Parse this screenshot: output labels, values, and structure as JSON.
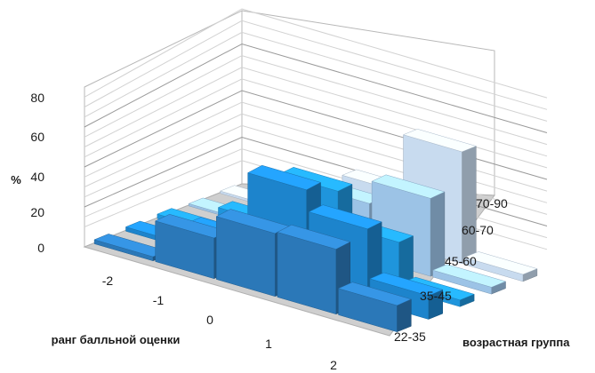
{
  "chart_data": {
    "type": "bar",
    "subtype": "3d-column",
    "ylabel": "%",
    "xlabel": "ранг балльной оценки",
    "zlabel": "возрастная группа",
    "categories": [
      "-2",
      "-1",
      "0",
      "1",
      "2"
    ],
    "y_ticks": [
      "0",
      "20",
      "40",
      "60",
      "80"
    ],
    "ylim": [
      0,
      80
    ],
    "grid": true,
    "series": [
      {
        "name": "22-35",
        "color": "#2b78b8",
        "values": [
          2,
          20,
          31,
          32,
          13
        ]
      },
      {
        "name": "35-45",
        "color": "#1d84cc",
        "values": [
          2,
          12,
          44,
          34,
          11
        ]
      },
      {
        "name": "45-60",
        "color": "#1f95dc",
        "values": [
          2,
          13,
          36,
          21,
          3
        ]
      },
      {
        "name": "60-70",
        "color": "#9cc3e6",
        "values": [
          1,
          10,
          24,
          34,
          3
        ]
      },
      {
        "name": "70-90",
        "color": "#c8dbef",
        "values": [
          1,
          2,
          23,
          48,
          3
        ]
      }
    ]
  }
}
